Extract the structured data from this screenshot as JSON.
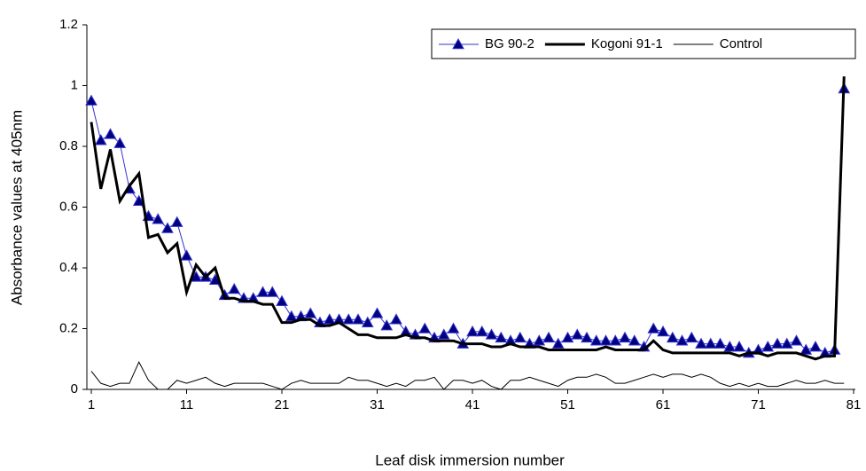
{
  "chart_data": {
    "type": "line",
    "xlabel": "Leaf disk immersion number",
    "ylabel": "Absorbance values at 405nm",
    "x": [
      1,
      2,
      3,
      4,
      5,
      6,
      7,
      8,
      9,
      10,
      11,
      12,
      13,
      14,
      15,
      16,
      17,
      18,
      19,
      20,
      21,
      22,
      23,
      24,
      25,
      26,
      27,
      28,
      29,
      30,
      31,
      32,
      33,
      34,
      35,
      36,
      37,
      38,
      39,
      40,
      41,
      42,
      43,
      44,
      45,
      46,
      47,
      48,
      49,
      50,
      51,
      52,
      53,
      54,
      55,
      56,
      57,
      58,
      59,
      60,
      61,
      62,
      63,
      64,
      65,
      66,
      67,
      68,
      69,
      70,
      71,
      72,
      73,
      74,
      75,
      76,
      77,
      78,
      79,
      80
    ],
    "xlim": [
      1,
      81
    ],
    "xticks": [
      1,
      11,
      21,
      31,
      41,
      51,
      61,
      71,
      81
    ],
    "ylim": [
      0,
      1.2
    ],
    "yticks": [
      0,
      0.2,
      0.4,
      0.6,
      0.8,
      1,
      1.2
    ],
    "legend": "upper right",
    "series": [
      {
        "name": "BG 90-2",
        "color": "#000080",
        "marker": "triangle",
        "values": [
          0.95,
          0.82,
          0.84,
          0.81,
          0.66,
          0.62,
          0.57,
          0.56,
          0.53,
          0.55,
          0.44,
          0.37,
          0.37,
          0.36,
          0.31,
          0.33,
          0.3,
          0.3,
          0.32,
          0.32,
          0.29,
          0.24,
          0.24,
          0.25,
          0.22,
          0.23,
          0.23,
          0.23,
          0.23,
          0.22,
          0.25,
          0.21,
          0.23,
          0.19,
          0.18,
          0.2,
          0.17,
          0.18,
          0.2,
          0.15,
          0.19,
          0.19,
          0.18,
          0.17,
          0.16,
          0.17,
          0.15,
          0.16,
          0.17,
          0.15,
          0.17,
          0.18,
          0.17,
          0.16,
          0.16,
          0.16,
          0.17,
          0.16,
          0.14,
          0.2,
          0.19,
          0.17,
          0.16,
          0.17,
          0.15,
          0.15,
          0.15,
          0.14,
          0.14,
          0.12,
          0.13,
          0.14,
          0.15,
          0.15,
          0.16,
          0.13,
          0.14,
          0.12,
          0.13,
          0.99
        ]
      },
      {
        "name": "Kogoni 91-1",
        "color": "#000000",
        "width": 3,
        "values": [
          0.88,
          0.66,
          0.79,
          0.62,
          0.67,
          0.71,
          0.5,
          0.51,
          0.45,
          0.48,
          0.32,
          0.41,
          0.37,
          0.4,
          0.3,
          0.3,
          0.29,
          0.29,
          0.28,
          0.28,
          0.22,
          0.22,
          0.23,
          0.23,
          0.21,
          0.21,
          0.22,
          0.2,
          0.18,
          0.18,
          0.17,
          0.17,
          0.17,
          0.18,
          0.17,
          0.17,
          0.16,
          0.16,
          0.16,
          0.15,
          0.15,
          0.15,
          0.14,
          0.14,
          0.15,
          0.14,
          0.14,
          0.14,
          0.13,
          0.13,
          0.13,
          0.13,
          0.13,
          0.13,
          0.14,
          0.13,
          0.13,
          0.13,
          0.13,
          0.16,
          0.13,
          0.12,
          0.12,
          0.12,
          0.12,
          0.12,
          0.12,
          0.12,
          0.11,
          0.12,
          0.12,
          0.11,
          0.12,
          0.12,
          0.12,
          0.11,
          0.1,
          0.11,
          0.11,
          1.03
        ]
      },
      {
        "name": "Control",
        "color": "#000000",
        "width": 1,
        "values": [
          0.06,
          0.02,
          0.01,
          0.02,
          0.02,
          0.09,
          0.03,
          0.0,
          0.0,
          0.03,
          0.02,
          0.03,
          0.04,
          0.02,
          0.01,
          0.02,
          0.02,
          0.02,
          0.02,
          0.01,
          0.0,
          0.02,
          0.03,
          0.02,
          0.02,
          0.02,
          0.02,
          0.04,
          0.03,
          0.03,
          0.02,
          0.01,
          0.02,
          0.01,
          0.03,
          0.03,
          0.04,
          0.0,
          0.03,
          0.03,
          0.02,
          0.03,
          0.01,
          0.0,
          0.03,
          0.03,
          0.04,
          0.03,
          0.02,
          0.01,
          0.03,
          0.04,
          0.04,
          0.05,
          0.04,
          0.02,
          0.02,
          0.03,
          0.04,
          0.05,
          0.04,
          0.05,
          0.05,
          0.04,
          0.05,
          0.04,
          0.02,
          0.01,
          0.02,
          0.01,
          0.02,
          0.01,
          0.01,
          0.02,
          0.03,
          0.02,
          0.02,
          0.03,
          0.02,
          0.02
        ]
      }
    ]
  }
}
